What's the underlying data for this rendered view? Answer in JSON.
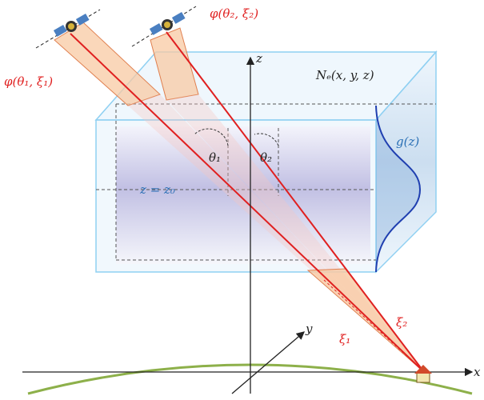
{
  "labels": {
    "phi1": "φ(θ₁, ξ₁)",
    "phi2": "φ(θ₂, ξ₂)",
    "z_axis": "z",
    "ne": "Nₑ(x, y, z)",
    "theta1": "θ₁",
    "theta2": "θ₂",
    "gz": "g(z)",
    "z0": "z = z₀",
    "y_axis": "y",
    "xi1": "ξ₁",
    "xi2": "ξ₂",
    "x_axis": "x"
  }
}
